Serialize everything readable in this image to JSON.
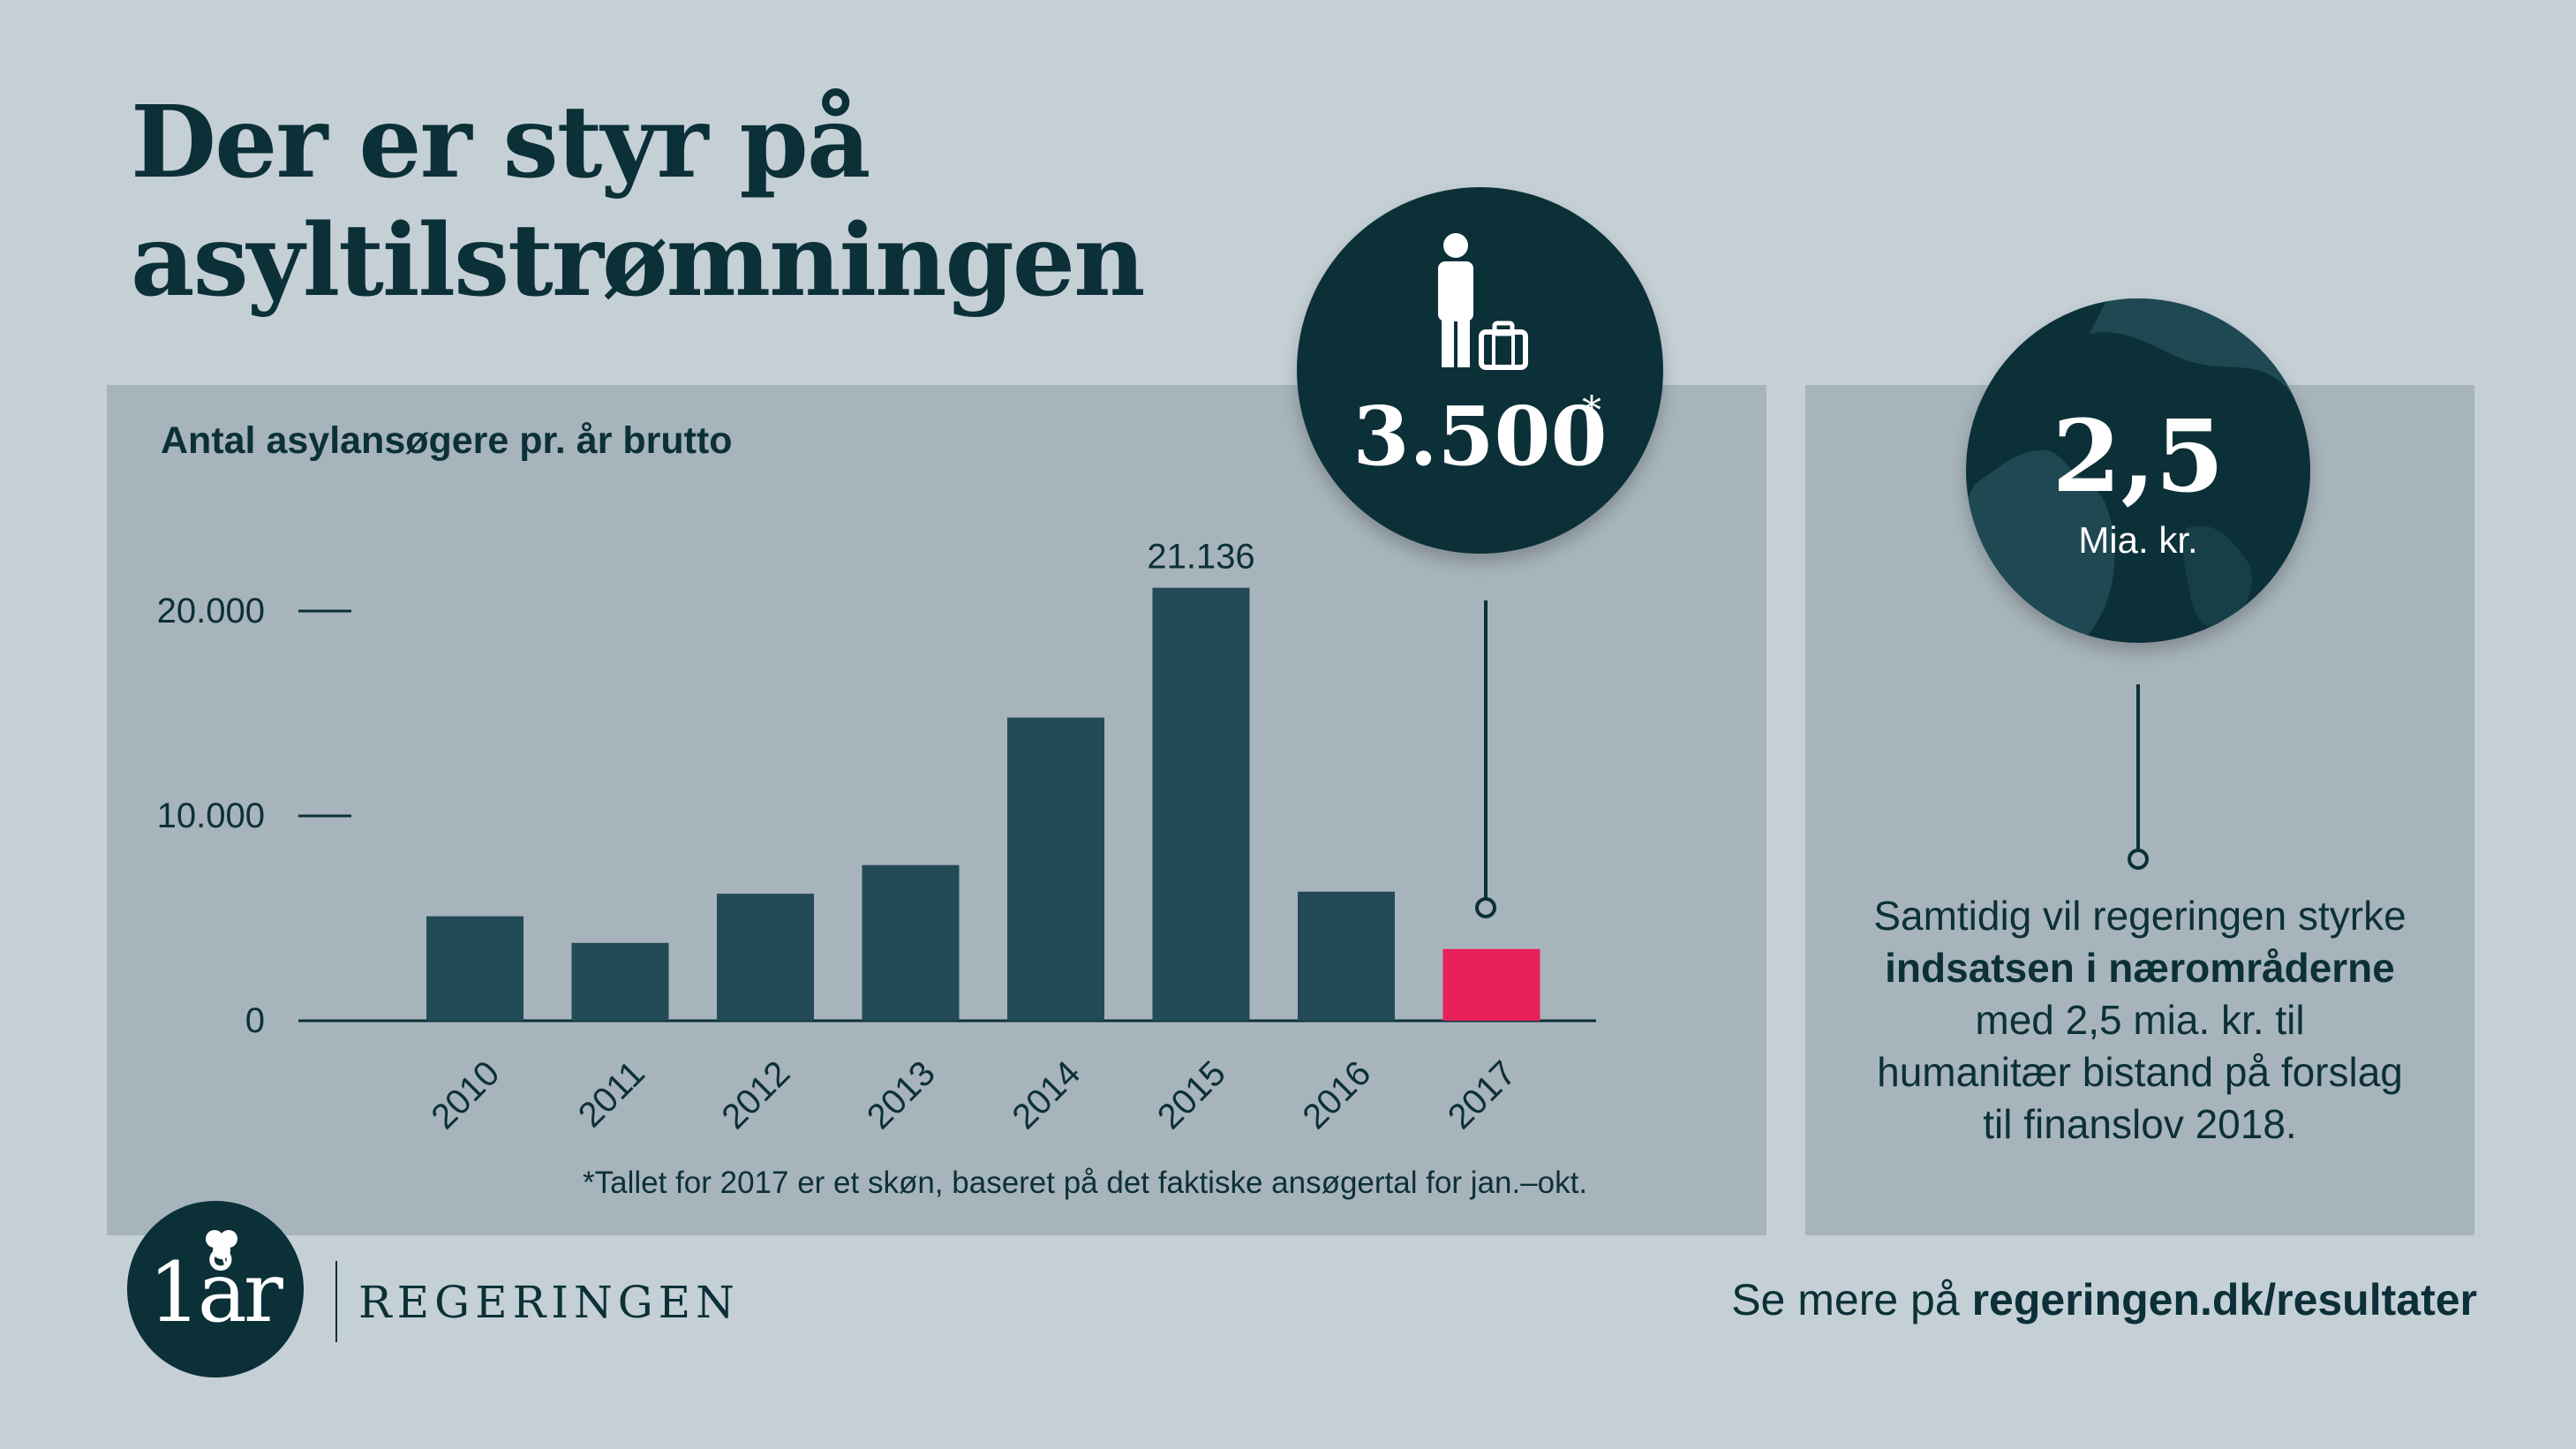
{
  "title": {
    "line1": "Der er styr på",
    "line2": "asyltilstrømningen"
  },
  "chart_data": {
    "type": "bar",
    "title": "Antal asylansøgere pr. år brutto",
    "xlabel": "",
    "ylabel": "",
    "categories": [
      "2010",
      "2011",
      "2012",
      "2013",
      "2014",
      "2015",
      "2016",
      "2017"
    ],
    "values": [
      5100,
      3800,
      6200,
      7600,
      14800,
      21136,
      6300,
      3500
    ],
    "data_labels": {
      "2015": "21.136"
    },
    "highlight_category": "2017",
    "ylim": [
      0,
      21136
    ],
    "yticks": [
      0,
      10000,
      20000
    ],
    "ytick_labels": [
      "0",
      "10.000",
      "20.000"
    ],
    "grid": false,
    "colors": {
      "bar": "#234a57",
      "highlight": "#e8205a",
      "axis": "#0c3038"
    }
  },
  "footnote": "*Tallet for 2017 er et skøn, baseret på det faktiske ansøgertal for jan.–okt.",
  "callout_left": {
    "icon": "traveler-with-suitcase-icon",
    "value": "3.500",
    "asterisk": "*"
  },
  "callout_right": {
    "icon": "globe-icon",
    "value": "2,5",
    "unit": "Mia. kr."
  },
  "side_text": {
    "line1": "Samtidig vil regeringen styrke",
    "line2": "indsatsen i nærområderne",
    "line3": "med 2,5 mia. kr. til",
    "line4": "humanitær bistand på forslag",
    "line5": "til finanslov 2018."
  },
  "logo": {
    "badge": "1år",
    "org": "REGERINGEN"
  },
  "footer": {
    "prefix": "Se mere på ",
    "url": "regeringen.dk/resultater"
  }
}
